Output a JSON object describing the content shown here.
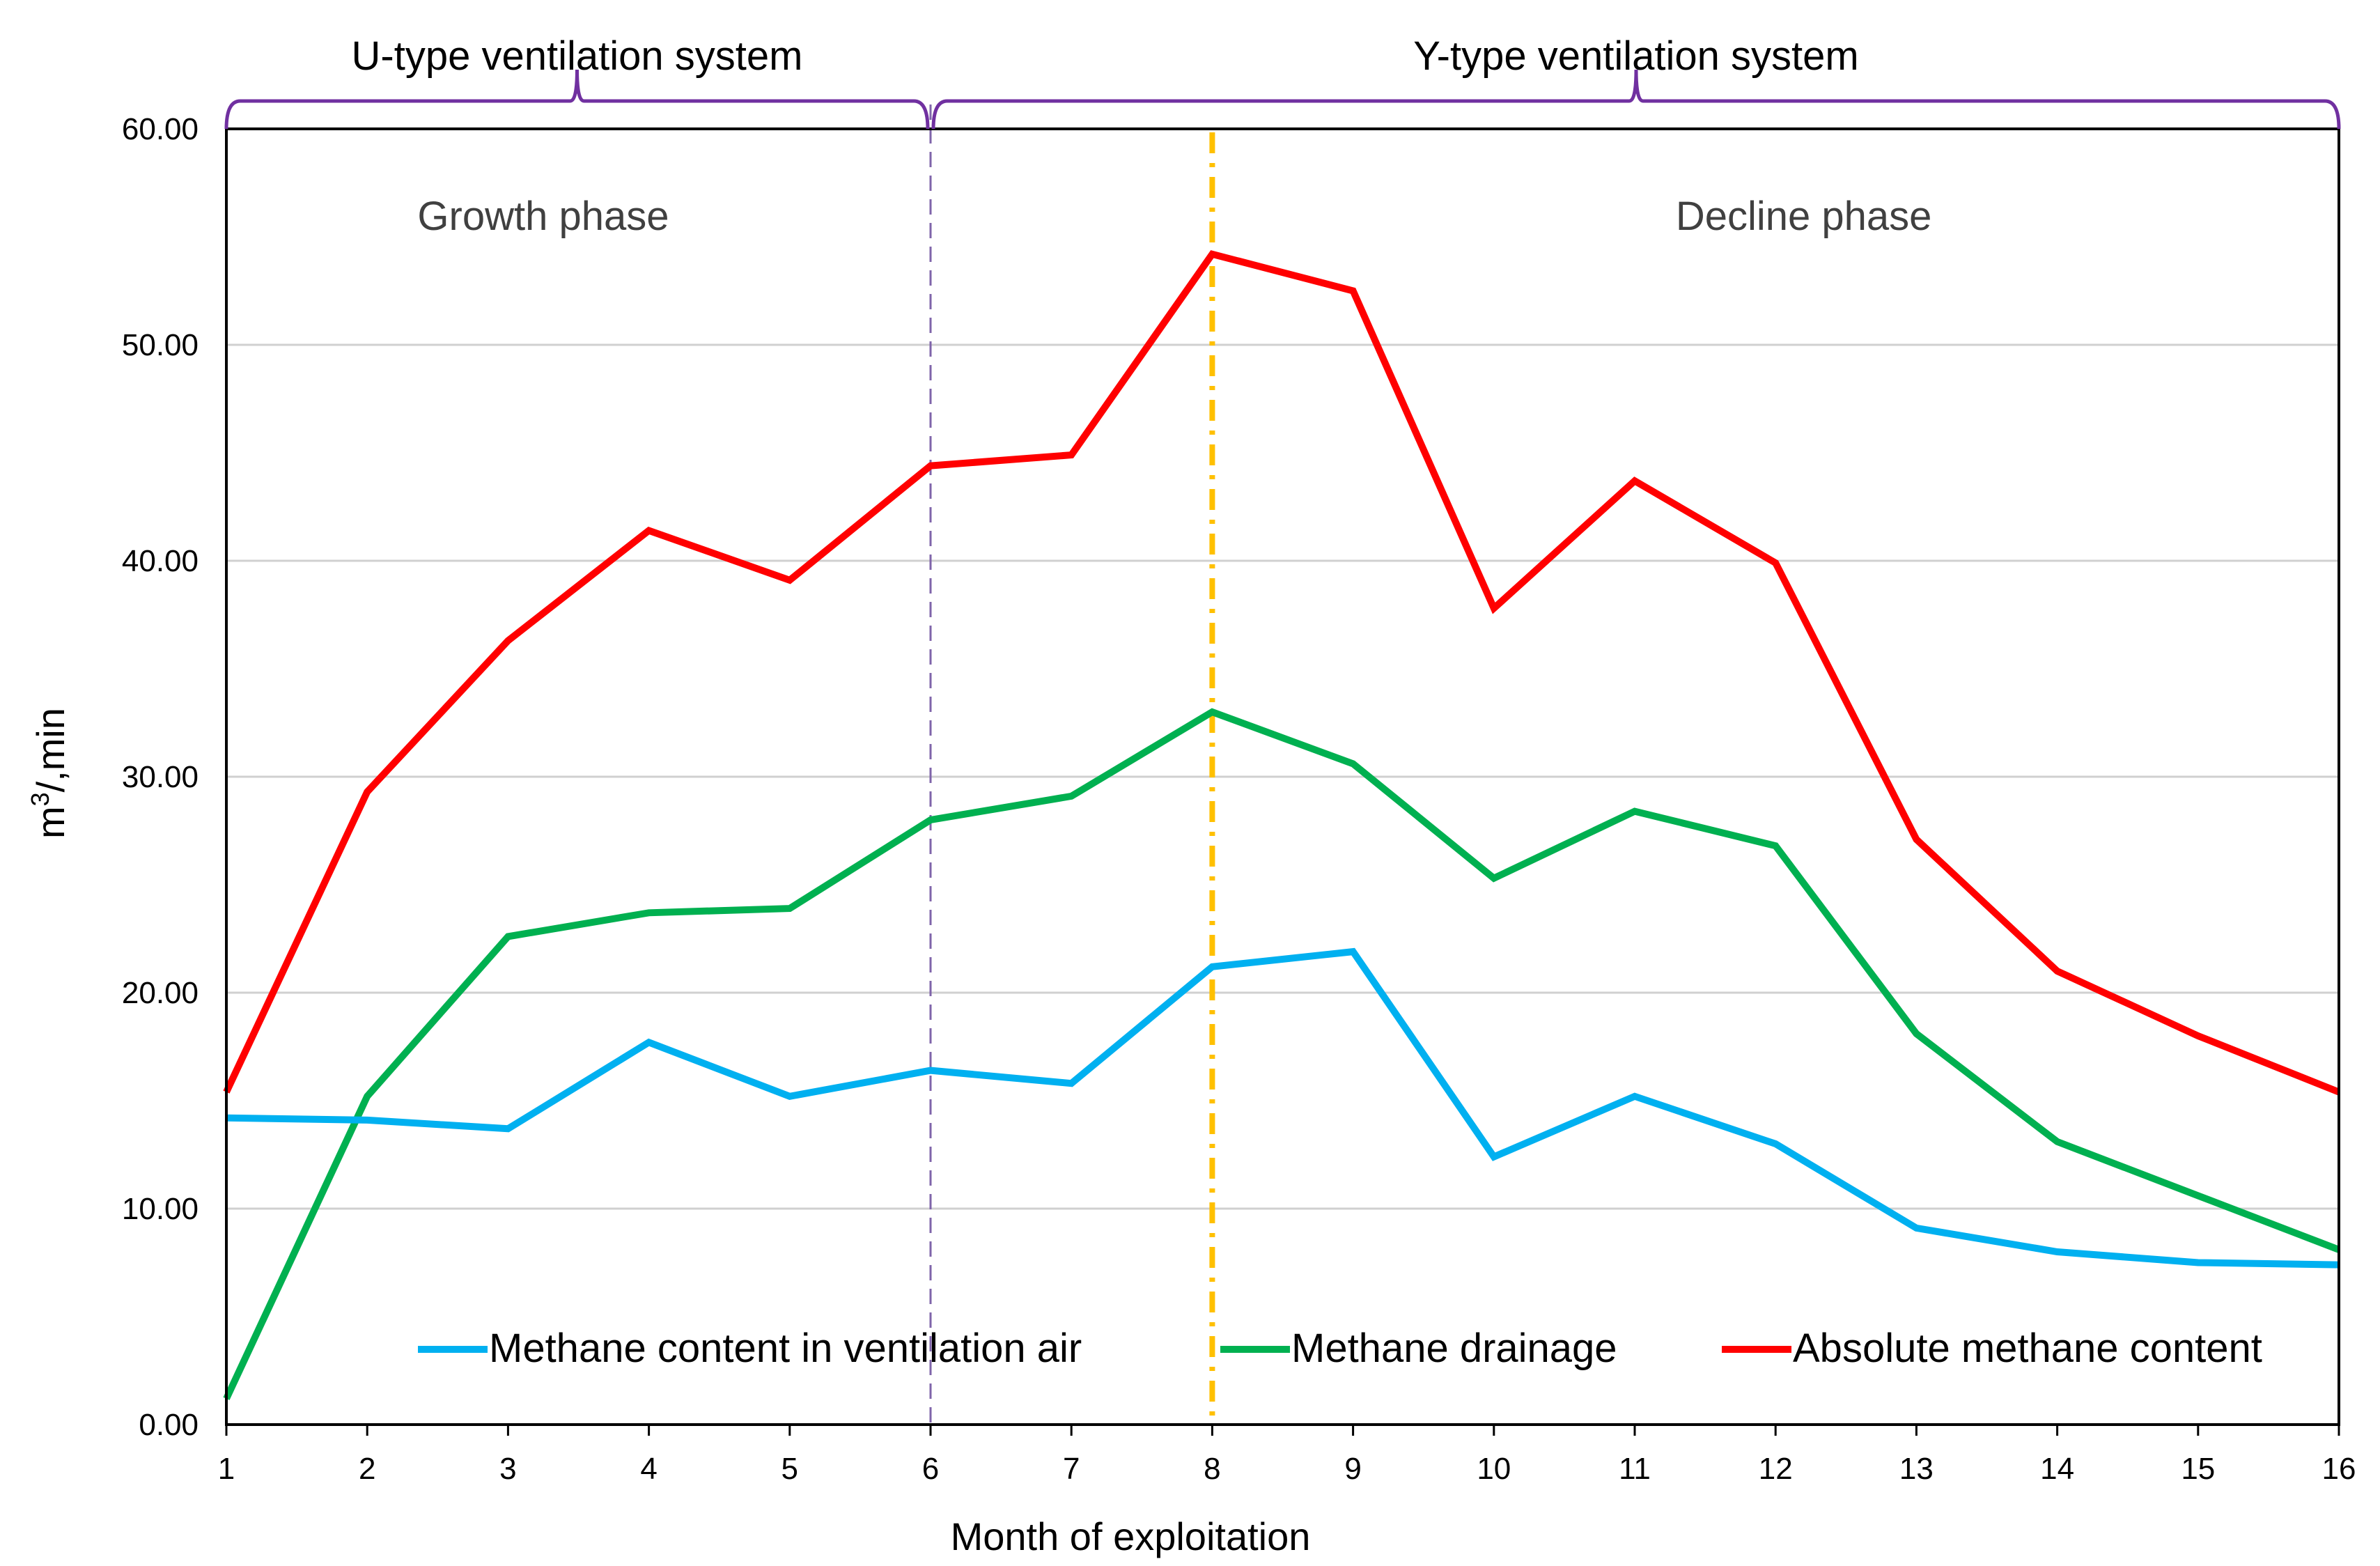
{
  "chart_data": {
    "type": "line",
    "x": [
      1,
      2,
      3,
      4,
      5,
      6,
      7,
      8,
      9,
      10,
      11,
      12,
      13,
      14,
      15,
      16
    ],
    "x_tick_labels": [
      "1",
      "2",
      "3",
      "4",
      "5",
      "6",
      "7",
      "8",
      "9",
      "10",
      "11",
      "12",
      "13",
      "14",
      "15",
      "16"
    ],
    "xlim": [
      1,
      16
    ],
    "ylim": [
      0,
      60
    ],
    "y_ticks": [
      0,
      10,
      20,
      30,
      40,
      50,
      60
    ],
    "y_tick_labels": [
      "0.00",
      "10.00",
      "20.00",
      "30.00",
      "40.00",
      "50.00",
      "60.00"
    ],
    "xlabel": "Month of exploitation",
    "ylabel_main": "m",
    "ylabel_sup": "3",
    "ylabel_rest": "/,min",
    "grid": true,
    "legend_position": "bottom inside",
    "series": [
      {
        "name": "Methane content in ventilation air",
        "color": "#00B0F0",
        "values": [
          14.2,
          14.1,
          13.7,
          17.7,
          15.2,
          16.4,
          15.8,
          21.2,
          21.9,
          12.4,
          15.2,
          13.0,
          9.1,
          8.0,
          7.5,
          7.4
        ]
      },
      {
        "name": "Methane drainage",
        "color": "#00B050",
        "values": [
          1.2,
          15.2,
          22.6,
          23.7,
          23.9,
          28.0,
          29.1,
          33.0,
          30.6,
          25.3,
          28.4,
          26.8,
          18.1,
          13.1,
          10.6,
          8.1
        ]
      },
      {
        "name": "Absolute methane content",
        "color": "#FF0000",
        "values": [
          15.4,
          29.3,
          36.3,
          41.4,
          39.1,
          44.4,
          44.9,
          54.2,
          52.5,
          37.8,
          43.7,
          39.9,
          27.1,
          21.0,
          18.0,
          15.4
        ]
      }
    ],
    "annotations": {
      "phases": [
        {
          "label": "Growth phase",
          "x_center": 3.25
        },
        {
          "label": "Decline phase",
          "x_center": 12.2
        }
      ],
      "systems": [
        {
          "label": "U-type ventilation system",
          "x_start": 1,
          "x_end": 6,
          "color": "#7030A0"
        },
        {
          "label": "Y-type ventilation system",
          "x_start": 6,
          "x_end": 16,
          "color": "#7030A0"
        }
      ],
      "vlines": [
        {
          "name": "system-switch",
          "x": 6,
          "color": "#7F64AA"
        },
        {
          "name": "peak-month",
          "x": 8,
          "color": "#FFC000"
        }
      ]
    }
  }
}
